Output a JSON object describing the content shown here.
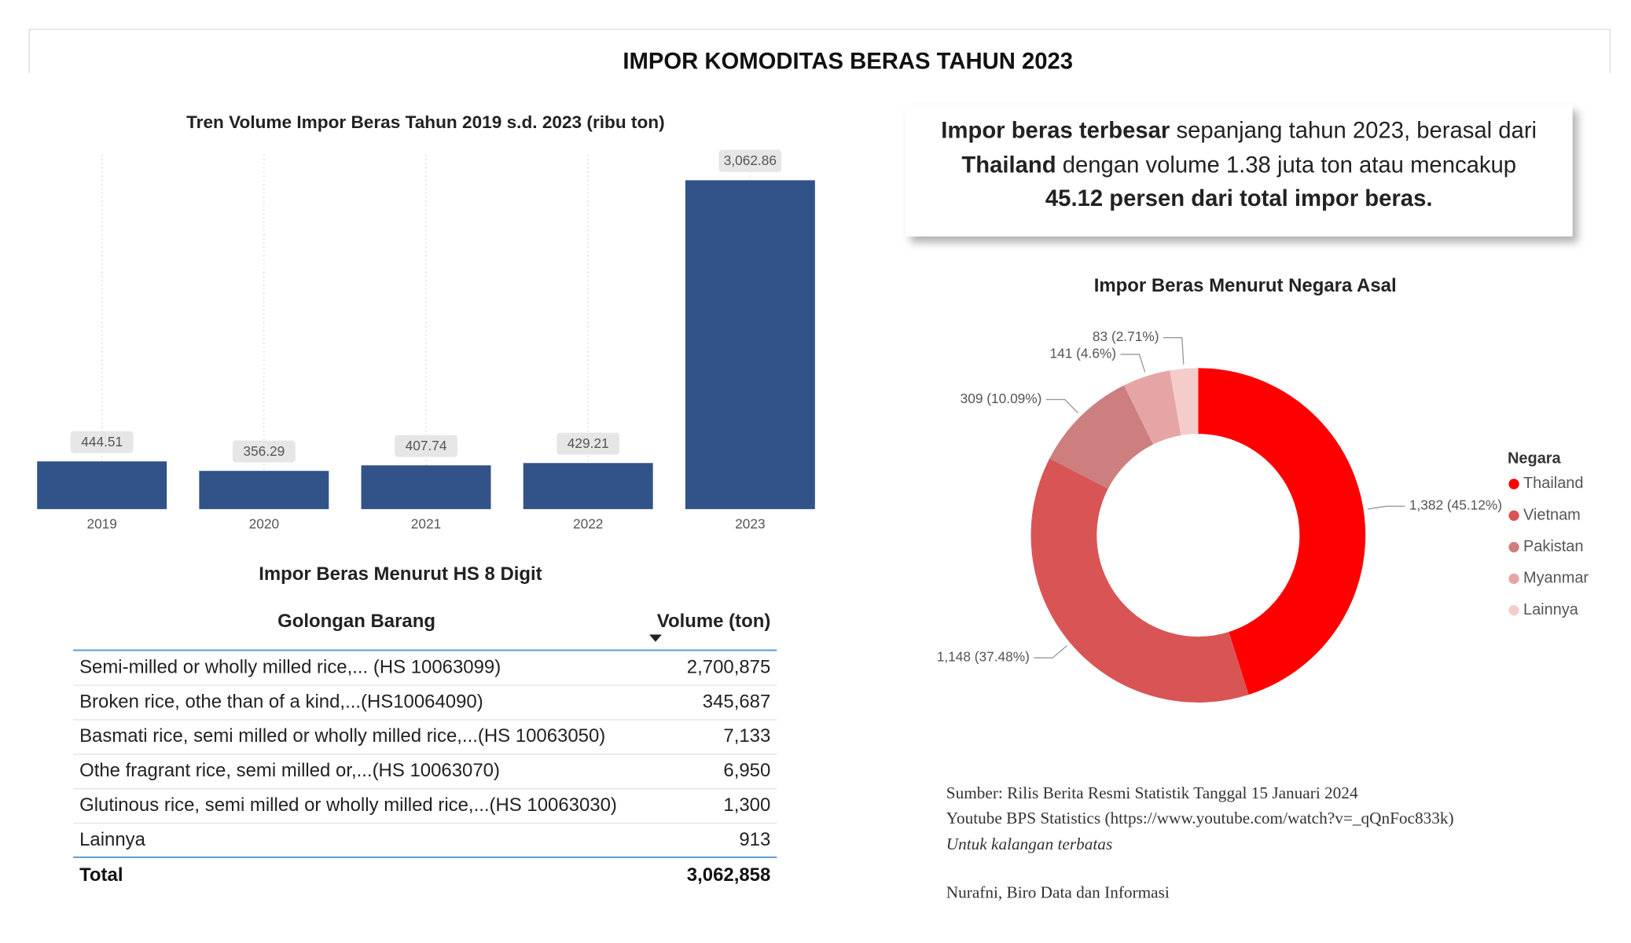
{
  "title": "IMPOR KOMODITAS BERAS TAHUN 2023",
  "chart_data": [
    {
      "type": "bar",
      "title": "Tren Volume Impor Beras Tahun 2019 s.d. 2023 (ribu ton)",
      "categories": [
        "2019",
        "2020",
        "2021",
        "2022",
        "2023"
      ],
      "values": [
        444.51,
        356.29,
        407.74,
        429.21,
        3062.86
      ],
      "value_labels": [
        "444.51",
        "356.29",
        "407.74",
        "429.21",
        "3,062.86"
      ],
      "color": "#325388",
      "ylim": [
        0,
        3300
      ],
      "grid": "x"
    },
    {
      "type": "pie",
      "title": "Impor Beras Menurut Negara Asal",
      "legend_title": "Negara",
      "categories": [
        "Thailand",
        "Vietnam",
        "Pakistan",
        "Myanmar",
        "Lainnya"
      ],
      "values": [
        1382,
        1148,
        309,
        141,
        83
      ],
      "value_labels": [
        "1,382 (45.12%)",
        "1,148 (37.48%)",
        "309 (10.09%)",
        "141 (4.6%)",
        "83 (2.71%)"
      ],
      "colors": [
        "#ff0000",
        "#d95555",
        "#cd7e7e",
        "#e6a5a5",
        "#f5cccc"
      ],
      "donut": true,
      "legend": "right"
    }
  ],
  "callout": {
    "segments": [
      "Impor beras terbesar",
      " sepanjang tahun 2023, berasal dari",
      "Thailand",
      " dengan volume 1.38 juta ton atau mencakup",
      "45.12 persen dari total impor beras."
    ]
  },
  "table": {
    "title": "Impor Beras Menurut HS 8 Digit",
    "header": [
      "Golongan Barang",
      "Volume (ton)"
    ],
    "rows": [
      [
        "Semi-milled or wholly milled rice,... (HS 10063099)",
        "2,700,875"
      ],
      [
        "Broken rice, othe than of a kind,...(HS10064090)",
        "345,687"
      ],
      [
        "Basmati rice, semi milled or wholly milled rice,...(HS 10063050)",
        "7,133"
      ],
      [
        "Othe fragrant rice, semi milled or,...(HS 10063070)",
        "6,950"
      ],
      [
        "Glutinous rice, semi milled or wholly milled rice,...(HS 10063030)",
        "1,300"
      ],
      [
        "Lainnya",
        "913"
      ]
    ],
    "total": [
      "Total",
      "3,062,858"
    ]
  },
  "footer": [
    "Sumber: Rilis Berita Resmi Statistik Tanggal 15 Januari 2024",
    "Youtube BPS Statistics (https://www.youtube.com/watch?v=_qQnFoc833k)",
    "Untuk kalangan terbatas",
    "Nurafni, Biro Data dan Informasi"
  ]
}
